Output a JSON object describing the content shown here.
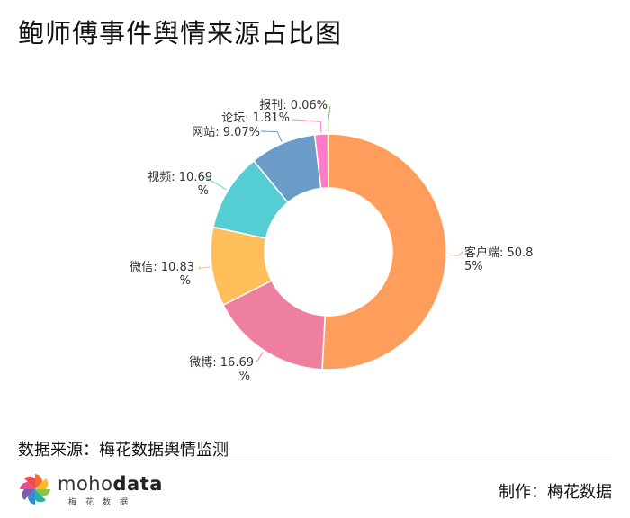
{
  "title": "鲍师傅事件舆情来源占比图",
  "chart_data": {
    "type": "pie",
    "donut": true,
    "slices": [
      {
        "name": "客户端",
        "value": 50.85,
        "label": [
          "客户端: 50.8",
          "5%"
        ],
        "color": "#FF9D5C"
      },
      {
        "name": "微博",
        "value": 16.69,
        "label": [
          "微博: 16.69",
          "%"
        ],
        "color": "#EE7F9E"
      },
      {
        "name": "微信",
        "value": 10.83,
        "label": [
          "微信: 10.83",
          "%"
        ],
        "color": "#FFBE5A"
      },
      {
        "name": "视频",
        "value": 10.69,
        "label": [
          "视频: 10.69",
          "%"
        ],
        "color": "#55CED3"
      },
      {
        "name": "网站",
        "value": 9.07,
        "label": [
          "网站: 9.07%"
        ],
        "color": "#6A9CC7"
      },
      {
        "name": "论坛",
        "value": 1.81,
        "label": [
          "论坛: 1.81%"
        ],
        "color": "#FF7BC8"
      },
      {
        "name": "报刊",
        "value": 0.06,
        "label": [
          "报刊: 0.06%"
        ],
        "color": "#7DBF6A"
      }
    ]
  },
  "footer": {
    "source": "数据来源：梅花数据舆情监测",
    "maker": "制作：梅花数据",
    "logo_light": "moho",
    "logo_bold": "data",
    "logo_sub": "梅花数据"
  }
}
